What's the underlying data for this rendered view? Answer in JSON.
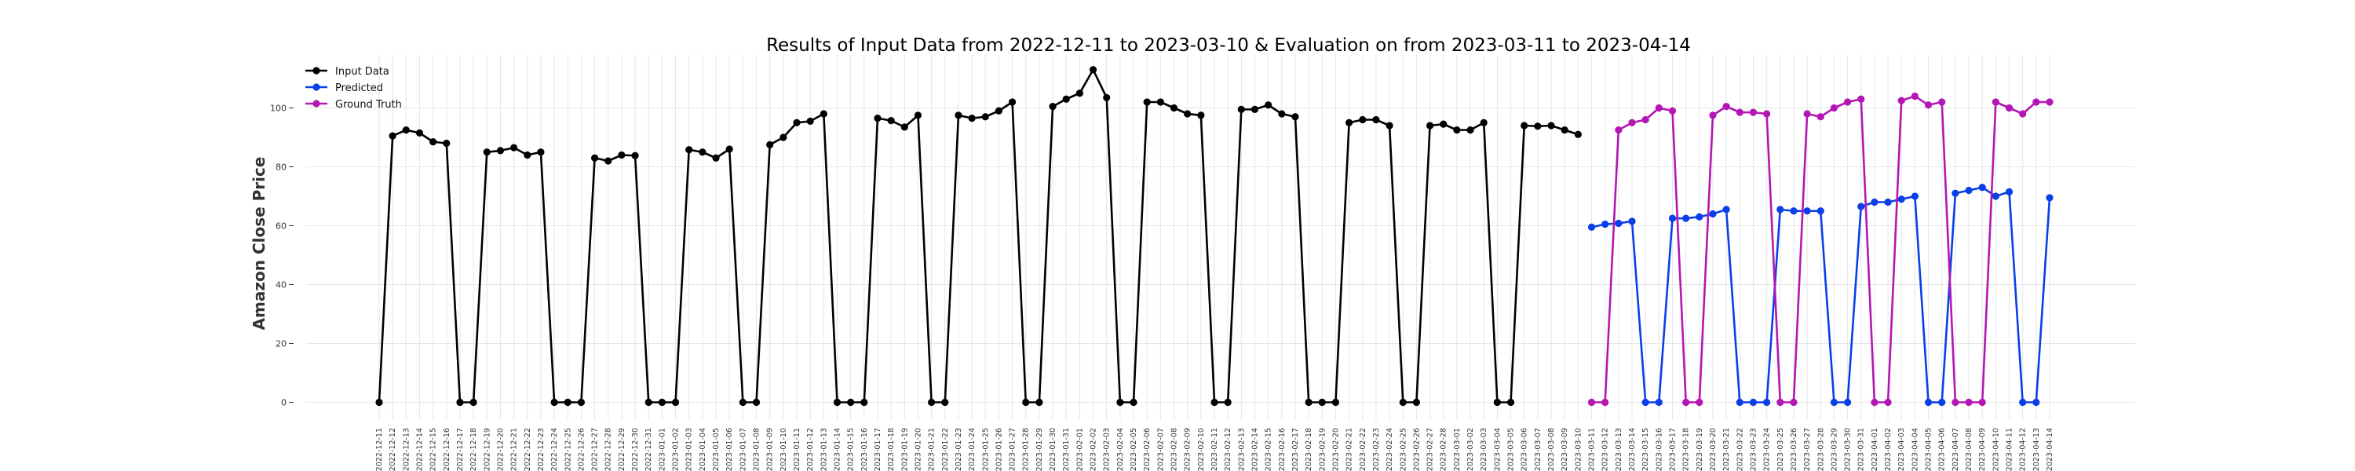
{
  "chart_data": {
    "type": "line",
    "title": "Results of Input Data from 2022-12-11 to 2023-03-10 & Evaluation on from 2023-03-11 to 2023-04-14",
    "xlabel": "",
    "ylabel": "Amazon Close Price",
    "ylim": [
      -6,
      118
    ],
    "yticks": [
      0,
      20,
      40,
      60,
      80,
      100
    ],
    "grid": true,
    "legend_position": "top-left",
    "x_labels": [
      "2022-12-11",
      "2022-12-12",
      "2022-12-13",
      "2022-12-14",
      "2022-12-15",
      "2022-12-16",
      "2022-12-17",
      "2022-12-18",
      "2022-12-19",
      "2022-12-20",
      "2022-12-21",
      "2022-12-22",
      "2022-12-23",
      "2022-12-24",
      "2022-12-25",
      "2022-12-26",
      "2022-12-27",
      "2022-12-28",
      "2022-12-29",
      "2022-12-30",
      "2022-12-31",
      "2023-01-01",
      "2023-01-02",
      "2023-01-03",
      "2023-01-04",
      "2023-01-05",
      "2023-01-06",
      "2023-01-07",
      "2023-01-08",
      "2023-01-09",
      "2023-01-10",
      "2023-01-11",
      "2023-01-12",
      "2023-01-13",
      "2023-01-14",
      "2023-01-15",
      "2023-01-16",
      "2023-01-17",
      "2023-01-18",
      "2023-01-19",
      "2023-01-20",
      "2023-01-21",
      "2023-01-22",
      "2023-01-23",
      "2023-01-24",
      "2023-01-25",
      "2023-01-26",
      "2023-01-27",
      "2023-01-28",
      "2023-01-29",
      "2023-01-30",
      "2023-01-31",
      "2023-02-01",
      "2023-02-02",
      "2023-02-03",
      "2023-02-04",
      "2023-02-05",
      "2023-02-06",
      "2023-02-07",
      "2023-02-08",
      "2023-02-09",
      "2023-02-10",
      "2023-02-11",
      "2023-02-12",
      "2023-02-13",
      "2023-02-14",
      "2023-02-15",
      "2023-02-16",
      "2023-02-17",
      "2023-02-18",
      "2023-02-19",
      "2023-02-20",
      "2023-02-21",
      "2023-02-22",
      "2023-02-23",
      "2023-02-24",
      "2023-02-25",
      "2023-02-26",
      "2023-02-27",
      "2023-02-28",
      "2023-03-01",
      "2023-03-02",
      "2023-03-03",
      "2023-03-04",
      "2023-03-05",
      "2023-03-06",
      "2023-03-07",
      "2023-03-08",
      "2023-03-09",
      "2023-03-10",
      "2023-03-11",
      "2023-03-12",
      "2023-03-13",
      "2023-03-14",
      "2023-03-15",
      "2023-03-16",
      "2023-03-17",
      "2023-03-18",
      "2023-03-19",
      "2023-03-20",
      "2023-03-21",
      "2023-03-22",
      "2023-03-23",
      "2023-03-24",
      "2023-03-25",
      "2023-03-26",
      "2023-03-27",
      "2023-03-28",
      "2023-03-29",
      "2023-03-30",
      "2023-03-31",
      "2023-04-01",
      "2023-04-02",
      "2023-04-03",
      "2023-04-04",
      "2023-04-05",
      "2023-04-06",
      "2023-04-07",
      "2023-04-08",
      "2023-04-09",
      "2023-04-10",
      "2023-04-11",
      "2023-04-12",
      "2023-04-13",
      "2023-04-14"
    ],
    "series": [
      {
        "name": "Input Data",
        "color": "#000000",
        "x_start": "2022-12-11",
        "values": [
          0,
          90.5,
          92.5,
          91.5,
          88.5,
          88,
          0,
          0,
          85,
          85.5,
          86.5,
          84,
          85,
          0,
          0,
          0,
          83,
          82,
          84,
          83.8,
          0,
          0,
          0,
          85.8,
          85,
          83,
          86,
          0,
          0,
          87.5,
          90,
          95,
          95.5,
          98,
          0,
          0,
          0,
          96.5,
          95.7,
          93.5,
          97.5,
          0,
          0,
          97.5,
          96.5,
          97,
          99,
          102,
          0,
          0,
          100.5,
          103,
          105,
          113,
          103.5,
          0,
          0,
          102,
          102,
          100,
          98,
          97.5,
          0,
          0,
          99.5,
          99.5,
          101,
          98,
          97,
          0,
          0,
          0,
          95,
          96,
          96,
          94,
          0,
          0,
          94,
          94.5,
          92.5,
          92.5,
          95,
          0,
          0,
          94,
          93.8,
          94,
          92.5,
          91
        ]
      },
      {
        "name": "Predicted",
        "color": "#0a3fe8",
        "x_start": "2023-03-11",
        "values": [
          59.5,
          60.5,
          60.8,
          61.5,
          0,
          0,
          62.5,
          62.5,
          63,
          64,
          65.5,
          0,
          0,
          0,
          65.5,
          65,
          65,
          65,
          0,
          0,
          66.5,
          68,
          68,
          69,
          70,
          0,
          0,
          71,
          72,
          73,
          70,
          71.5,
          0,
          0,
          69.5
        ]
      },
      {
        "name": "Ground Truth",
        "color": "#b416b4",
        "x_start": "2023-03-11",
        "values": [
          0,
          0,
          92.5,
          95,
          96,
          100,
          99,
          0,
          0,
          97.5,
          100.5,
          98.5,
          98.5,
          98,
          0,
          0,
          98,
          97,
          100,
          102,
          103,
          0,
          0,
          102.5,
          104,
          101,
          102,
          0,
          0,
          0,
          102,
          100,
          98,
          102,
          102
        ]
      }
    ]
  }
}
